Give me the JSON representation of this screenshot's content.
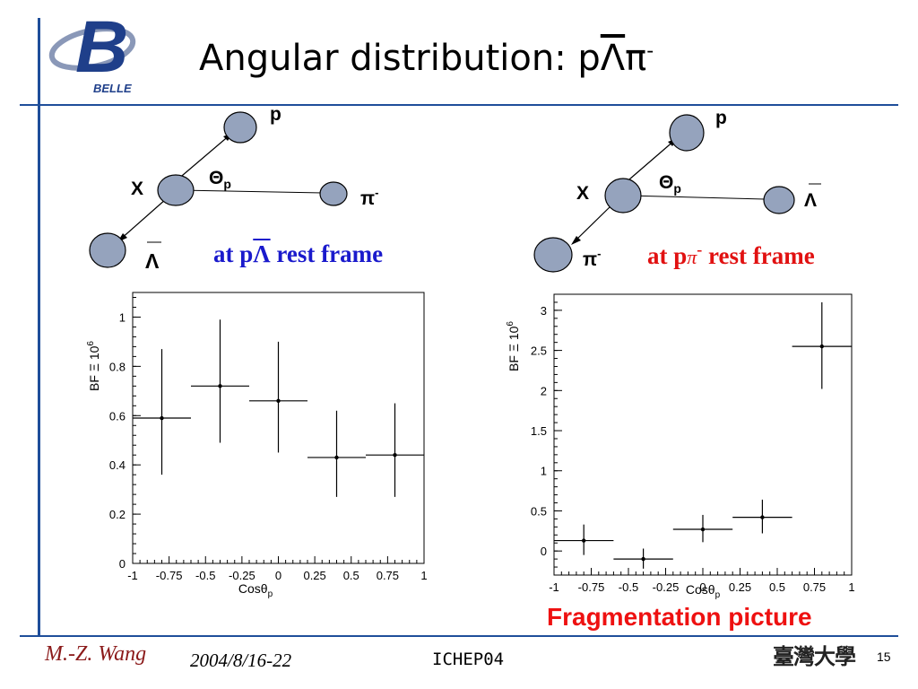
{
  "header": {
    "logo_text": "BELLE",
    "title": "Angular distribution: p",
    "title_particle": "Λ",
    "title_pion": "π",
    "title_pion_charge": "-"
  },
  "diagram_left": {
    "labels": {
      "proton": "p",
      "angle": "Θ",
      "angle_sub": "p",
      "parent": "X",
      "pion": "π",
      "pion_charge": "-",
      "antilambda": "Λ"
    },
    "caption_prefix": "at p",
    "caption_particle": "Λ",
    "caption_suffix": " rest frame",
    "caption_color": "#1a1acc"
  },
  "diagram_right": {
    "labels": {
      "proton": "p",
      "angle": "Θ",
      "angle_sub": "p",
      "parent": "X",
      "antilambda": "Λ",
      "pion": "π",
      "pion_charge": "-"
    },
    "caption_prefix": "at p",
    "caption_particle": "π",
    "caption_charge": "-",
    "caption_suffix": " rest frame",
    "caption_color": "#e11111"
  },
  "chart_data": [
    {
      "type": "scatter",
      "error_bars": true,
      "xlabel": "Cosθ",
      "xlabel_sub": "p",
      "ylabel": "BF Ξ 10",
      "ylabel_sup": "6",
      "xlim": [
        -1,
        1
      ],
      "ylim": [
        0,
        1.1
      ],
      "x_ticks": [
        -1,
        -0.75,
        -0.5,
        -0.25,
        0,
        0.25,
        0.5,
        0.75,
        1
      ],
      "x_tick_labels": [
        "-1",
        "-0.75",
        "-0.5",
        "-0.25",
        "0",
        "0.25",
        "0.5",
        "0.75",
        "1"
      ],
      "y_ticks": [
        0,
        0.2,
        0.4,
        0.6,
        0.8,
        1
      ],
      "y_tick_labels": [
        "0",
        "0.2",
        "0.4",
        "0.6",
        "0.8",
        "1"
      ],
      "points": [
        {
          "x": -0.8,
          "y": 0.59,
          "xerr": 0.2,
          "ylo": 0.36,
          "yhi": 0.87
        },
        {
          "x": -0.4,
          "y": 0.72,
          "xerr": 0.2,
          "ylo": 0.49,
          "yhi": 0.99
        },
        {
          "x": 0.0,
          "y": 0.66,
          "xerr": 0.2,
          "ylo": 0.45,
          "yhi": 0.9
        },
        {
          "x": 0.4,
          "y": 0.43,
          "xerr": 0.2,
          "ylo": 0.27,
          "yhi": 0.62
        },
        {
          "x": 0.8,
          "y": 0.44,
          "xerr": 0.2,
          "ylo": 0.27,
          "yhi": 0.65
        }
      ]
    },
    {
      "type": "scatter",
      "error_bars": true,
      "xlabel": "Cosθ",
      "xlabel_sub": "p",
      "ylabel": "BF Ξ 10",
      "ylabel_sup": "6",
      "xlim": [
        -1,
        1
      ],
      "ylim": [
        -0.3,
        3.2
      ],
      "x_ticks": [
        -1,
        -0.75,
        -0.5,
        -0.25,
        0,
        0.25,
        0.5,
        0.75,
        1
      ],
      "x_tick_labels": [
        "-1",
        "-0.75",
        "-0.5",
        "-0.25",
        "0",
        "0.25",
        "0.5",
        "0.75",
        "1"
      ],
      "y_ticks": [
        0,
        0.5,
        1,
        1.5,
        2,
        2.5,
        3
      ],
      "y_tick_labels": [
        "0",
        "0.5",
        "1",
        "1.5",
        "2",
        "2.5",
        "3"
      ],
      "points": [
        {
          "x": -0.8,
          "y": 0.13,
          "xerr": 0.2,
          "ylo": -0.05,
          "yhi": 0.33
        },
        {
          "x": -0.4,
          "y": -0.1,
          "xerr": 0.2,
          "ylo": -0.22,
          "yhi": 0.03
        },
        {
          "x": 0.0,
          "y": 0.27,
          "xerr": 0.2,
          "ylo": 0.11,
          "yhi": 0.45
        },
        {
          "x": 0.4,
          "y": 0.42,
          "xerr": 0.2,
          "ylo": 0.22,
          "yhi": 0.64
        },
        {
          "x": 0.8,
          "y": 2.55,
          "xerr": 0.2,
          "ylo": 2.02,
          "yhi": 3.1
        }
      ]
    }
  ],
  "annotation": "Fragmentation picture",
  "footer": {
    "author": "M.-Z. Wang",
    "date": "2004/8/16-22",
    "conference": "ICHEP04",
    "page": "15",
    "institution_logo_text": "臺灣大學"
  }
}
